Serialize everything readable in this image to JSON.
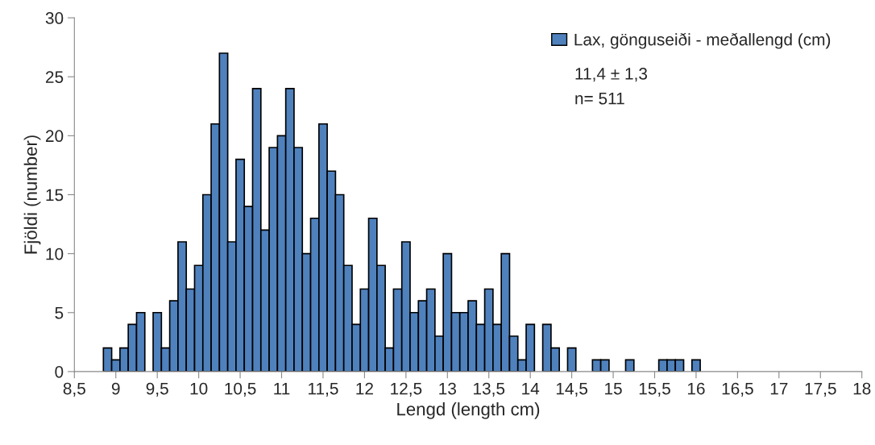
{
  "chart_data": {
    "type": "histogram",
    "xlabel": "Lengd (length cm)",
    "ylabel": "Fjöldi (number)",
    "bins": [
      8.85,
      8.95,
      9.05,
      9.15,
      9.25,
      9.35,
      9.45,
      9.55,
      9.65,
      9.75,
      9.85,
      9.95,
      10.05,
      10.15,
      10.25,
      10.35,
      10.45,
      10.55,
      10.65,
      10.75,
      10.85,
      10.95,
      11.05,
      11.15,
      11.25,
      11.35,
      11.45,
      11.55,
      11.65,
      11.75,
      11.85,
      11.95,
      12.05,
      12.15,
      12.25,
      12.35,
      12.45,
      12.55,
      12.65,
      12.75,
      12.85,
      12.95,
      13.05,
      13.15,
      13.25,
      13.35,
      13.45,
      13.55,
      13.65,
      13.75,
      13.85,
      13.95,
      14.05,
      14.15,
      14.25,
      14.35,
      14.45,
      14.55,
      14.65,
      14.75,
      14.85,
      14.95,
      15.05,
      15.15,
      15.25,
      15.35,
      15.45,
      15.55,
      15.65,
      15.75,
      15.85,
      15.95,
      16.05
    ],
    "series": [
      {
        "name": "Lax, gönguseiði - meðallengd (cm)",
        "color": "#4f81bd",
        "values": [
          2,
          1,
          2,
          4,
          5,
          0,
          5,
          2,
          6,
          11,
          7,
          9,
          15,
          21,
          27,
          11,
          18,
          14,
          24,
          12,
          19,
          20,
          24,
          19,
          10,
          13,
          21,
          17,
          15,
          9,
          4,
          7,
          13,
          9,
          2,
          7,
          11,
          5,
          6,
          7,
          3,
          10,
          5,
          5,
          6,
          4,
          7,
          4,
          10,
          3,
          1,
          4,
          0,
          4,
          2,
          0,
          2,
          0,
          0,
          1,
          1,
          0,
          0,
          1,
          0,
          0,
          0,
          1,
          1,
          1,
          0,
          1
        ]
      }
    ],
    "annotations": [
      "11,4 ± 1,3",
      "n= 511"
    ],
    "xlim": [
      8.5,
      18
    ],
    "xticks": [
      {
        "value": 8.5,
        "label": "8,5"
      },
      9,
      {
        "value": 9.5,
        "label": "9,5"
      },
      10,
      {
        "value": 10.5,
        "label": "10,5"
      },
      11,
      {
        "value": 11.5,
        "label": "11,5"
      },
      12,
      {
        "value": 12.5,
        "label": "12,5"
      },
      13,
      {
        "value": 13.5,
        "label": "13,5"
      },
      14,
      {
        "value": 14.5,
        "label": "14,5"
      },
      15,
      {
        "value": 15.5,
        "label": "15,5"
      },
      16,
      {
        "value": 16.5,
        "label": "16,5"
      },
      17,
      {
        "value": 17.5,
        "label": "17,5"
      },
      18
    ],
    "ylim": [
      0,
      30
    ],
    "yticks": [
      0,
      5,
      10,
      15,
      20,
      25,
      30
    ],
    "grid": false,
    "legend": "top right"
  }
}
